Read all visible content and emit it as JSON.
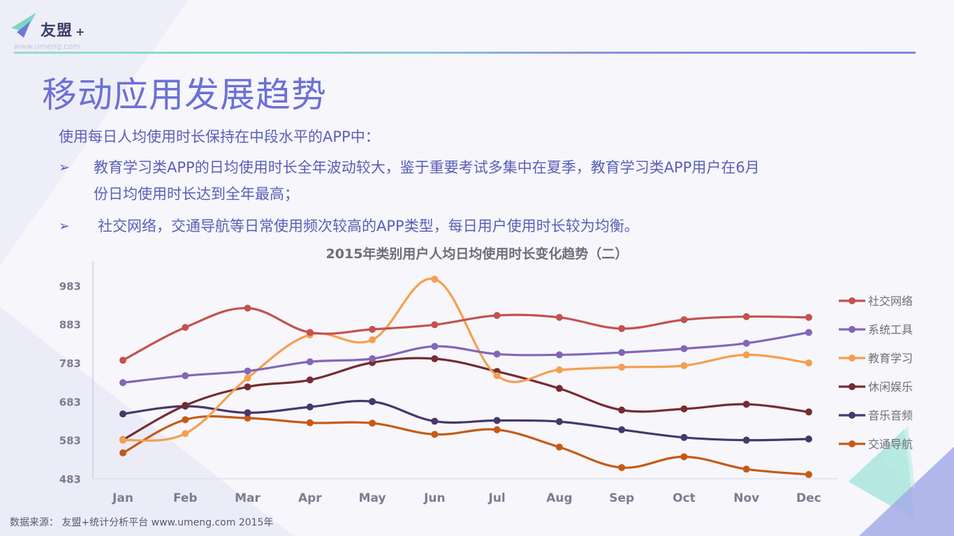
{
  "logo": {
    "name": "友盟",
    "plus": "+",
    "url": "www.umeng.com"
  },
  "slide": {
    "title": "移动应用发展趋势",
    "intro": "使用每日人均使用时长保持在中段水平的APP中：",
    "bullets": [
      {
        "arrow": "➢",
        "lines": [
          "教育学习类APP的日均使用时长全年波动较大，鉴于重要考试多集中在夏季，教育学习类APP用户在6月",
          "份日均使用时长达到全年最高；"
        ]
      },
      {
        "arrow": "➢",
        "lines": [
          "社交网络，交通导航等日常使用频次较高的APP类型，每日用户使用时长较为均衡。"
        ]
      }
    ],
    "source": "数据来源：  友盟+统计分析平台  www.umeng.com 2015年"
  },
  "colors": {
    "title": "#6b71d6",
    "text": "#5a5fb8"
  },
  "chart_data": {
    "type": "line",
    "title": "2015年类别用户人均日均使用时长变化趋势（二）",
    "xlabel": "",
    "ylabel": "",
    "categories": [
      "Jan",
      "Feb",
      "Mar",
      "Apr",
      "May",
      "Jun",
      "Jul",
      "Aug",
      "Sep",
      "Oct",
      "Nov",
      "Dec"
    ],
    "yticks": [
      483,
      583,
      683,
      783,
      883,
      983
    ],
    "ylim": [
      483,
      1000
    ],
    "grid": false,
    "legend_position": "right",
    "series": [
      {
        "name": "社交网络",
        "color": "#c4514f",
        "values": [
          790,
          875,
          925,
          862,
          870,
          882,
          906,
          901,
          872,
          895,
          903,
          901
        ]
      },
      {
        "name": "系统工具",
        "color": "#8266b8",
        "values": [
          732,
          750,
          762,
          786,
          794,
          826,
          806,
          804,
          810,
          820,
          834,
          862
        ]
      },
      {
        "name": "教育学习",
        "color": "#f59f4e",
        "values": [
          583,
          600,
          744,
          856,
          843,
          1000,
          750,
          765,
          772,
          776,
          804,
          783
        ]
      },
      {
        "name": "休闲娱乐",
        "color": "#762b30",
        "values": [
          584,
          673,
          721,
          739,
          784,
          794,
          761,
          717,
          661,
          664,
          676,
          656
        ]
      },
      {
        "name": "音乐音频",
        "color": "#47376b",
        "values": [
          651,
          671,
          654,
          669,
          683,
          632,
          634,
          631,
          610,
          590,
          583,
          586
        ]
      },
      {
        "name": "交通导航",
        "color": "#c65a14",
        "values": [
          550,
          636,
          640,
          628,
          627,
          598,
          610,
          565,
          512,
          540,
          508,
          494
        ]
      }
    ]
  }
}
